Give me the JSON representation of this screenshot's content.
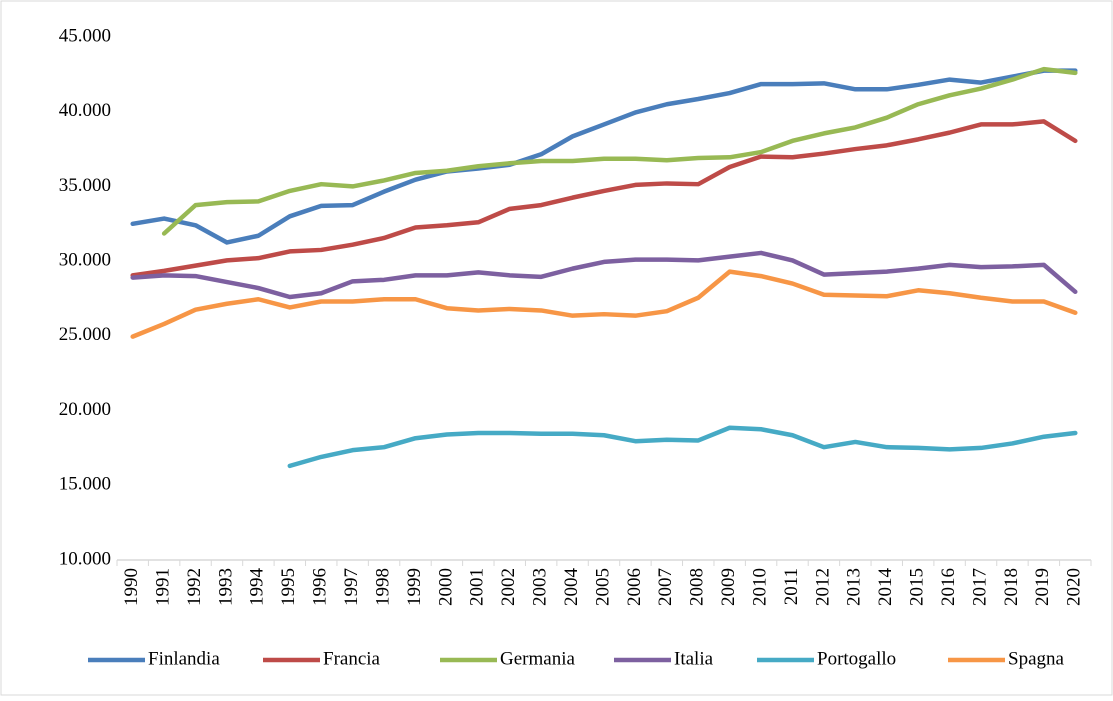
{
  "chart_data": {
    "type": "line",
    "categories": [
      "1990",
      "1991",
      "1992",
      "1993",
      "1994",
      "1995",
      "1996",
      "1997",
      "1998",
      "1999",
      "2000",
      "2001",
      "2002",
      "2003",
      "2004",
      "2005",
      "2006",
      "2007",
      "2008",
      "2009",
      "2010",
      "2011",
      "2012",
      "2013",
      "2014",
      "2015",
      "2016",
      "2017",
      "2018",
      "2019",
      "2020"
    ],
    "series": [
      {
        "name": "Finlandia",
        "color": "#4a7ebb",
        "values": [
          32500,
          32850,
          32400,
          31250,
          31700,
          33000,
          33700,
          33750,
          34650,
          35450,
          36000,
          36200,
          36450,
          37150,
          38350,
          39150,
          39950,
          40500,
          40850,
          41250,
          41850,
          41850,
          41900,
          41500,
          41500,
          41800,
          42150,
          41950,
          42350,
          42750,
          42750
        ]
      },
      {
        "name": "Francia",
        "color": "#be4b48",
        "values": [
          29050,
          29350,
          29700,
          30050,
          30200,
          30650,
          30750,
          31100,
          31550,
          32250,
          32400,
          32600,
          33500,
          33750,
          34250,
          34700,
          35100,
          35200,
          35150,
          36300,
          37000,
          36950,
          37200,
          37500,
          37750,
          38150,
          38600,
          39150,
          39150,
          39350,
          38050
        ]
      },
      {
        "name": "Germania",
        "color": "#98b954",
        "values": [
          null,
          31850,
          33750,
          33950,
          34000,
          34700,
          35150,
          35000,
          35400,
          35900,
          36050,
          36350,
          36550,
          36700,
          36700,
          36850,
          36850,
          36750,
          36900,
          36950,
          37300,
          38050,
          38550,
          38950,
          39600,
          40500,
          41100,
          41550,
          42150,
          42850,
          42600
        ]
      },
      {
        "name": "Italia",
        "color": "#7d60a0",
        "values": [
          28900,
          29050,
          29000,
          28600,
          28200,
          27600,
          27850,
          28650,
          28750,
          29050,
          29050,
          29250,
          29050,
          28950,
          29500,
          29950,
          30100,
          30100,
          30050,
          30300,
          30550,
          30050,
          29100,
          29200,
          29300,
          29500,
          29750,
          29600,
          29650,
          29750,
          27950
        ]
      },
      {
        "name": "Portogallo",
        "color": "#46aac5",
        "values": [
          null,
          null,
          null,
          null,
          null,
          16300,
          16900,
          17350,
          17550,
          18150,
          18400,
          18500,
          18500,
          18450,
          18450,
          18350,
          17950,
          18050,
          18000,
          18850,
          18750,
          18350,
          17550,
          17900,
          17550,
          17500,
          17400,
          17500,
          17800,
          18250,
          18500
        ]
      },
      {
        "name": "Spagna",
        "color": "#f79646",
        "values": [
          24950,
          25800,
          26750,
          27150,
          27450,
          26900,
          27300,
          27300,
          27450,
          27450,
          26850,
          26700,
          26800,
          26700,
          26350,
          26450,
          26350,
          26650,
          27550,
          29300,
          29000,
          28500,
          27750,
          27700,
          27650,
          28050,
          27850,
          27550,
          27300,
          27300,
          26550
        ]
      }
    ],
    "ylim": [
      10000,
      45000
    ],
    "yticks": [
      {
        "value": 10000,
        "label": "10.000"
      },
      {
        "value": 15000,
        "label": "15.000"
      },
      {
        "value": 20000,
        "label": "20.000"
      },
      {
        "value": 25000,
        "label": "25.000"
      },
      {
        "value": 30000,
        "label": "30.000"
      },
      {
        "value": 35000,
        "label": "35.000"
      },
      {
        "value": 40000,
        "label": "40.000"
      },
      {
        "value": 45000,
        "label": "45.000"
      }
    ],
    "grid": false,
    "legend": "bottom"
  }
}
